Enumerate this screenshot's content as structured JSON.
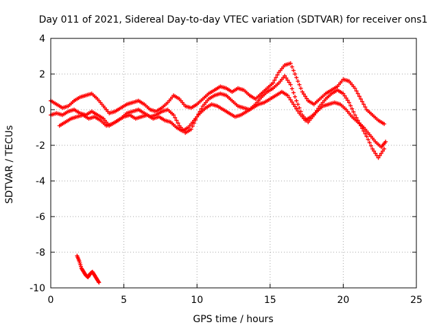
{
  "chart_data": {
    "type": "scatter",
    "title": "Day 011 of 2021, Sidereal Day-to-day VTEC variation (SDTVAR) for receiver ons1",
    "xlabel": "GPS time / hours",
    "ylabel": "SDTVAR / TECUs",
    "xlim": [
      0,
      25
    ],
    "ylim": [
      -10,
      4
    ],
    "xticks": [
      0,
      5,
      10,
      15,
      20,
      25
    ],
    "yticks": [
      -10,
      -8,
      -6,
      -4,
      -2,
      0,
      2,
      4
    ],
    "grid": true,
    "grid_style": "dotted",
    "marker": "+",
    "series_color": "#ff0000",
    "series": [
      {
        "name": "track-upper",
        "points": [
          [
            0,
            0.5
          ],
          [
            0.4,
            0.3
          ],
          [
            0.8,
            0.1
          ],
          [
            1.2,
            0.2
          ],
          [
            1.6,
            0.5
          ],
          [
            2.0,
            0.7
          ],
          [
            2.4,
            0.8
          ],
          [
            2.8,
            0.9
          ],
          [
            3.2,
            0.6
          ],
          [
            3.6,
            0.2
          ],
          [
            4.0,
            -0.2
          ],
          [
            4.4,
            -0.1
          ],
          [
            4.8,
            0.1
          ],
          [
            5.2,
            0.3
          ],
          [
            5.6,
            0.4
          ],
          [
            6.0,
            0.5
          ],
          [
            6.4,
            0.3
          ],
          [
            6.8,
            0.0
          ],
          [
            7.2,
            -0.1
          ],
          [
            7.6,
            0.1
          ],
          [
            8.0,
            0.4
          ],
          [
            8.4,
            0.8
          ],
          [
            8.8,
            0.6
          ],
          [
            9.2,
            0.2
          ],
          [
            9.6,
            0.1
          ],
          [
            10.0,
            0.3
          ],
          [
            10.4,
            0.6
          ],
          [
            10.8,
            0.9
          ],
          [
            11.2,
            1.1
          ],
          [
            11.6,
            1.3
          ],
          [
            12.0,
            1.2
          ],
          [
            12.4,
            1.0
          ],
          [
            12.8,
            1.2
          ],
          [
            13.2,
            1.1
          ],
          [
            13.6,
            0.8
          ],
          [
            14.0,
            0.6
          ],
          [
            14.4,
            0.9
          ],
          [
            14.8,
            1.2
          ],
          [
            15.2,
            1.5
          ],
          [
            15.6,
            2.1
          ],
          [
            16.0,
            2.5
          ],
          [
            16.4,
            2.6
          ],
          [
            16.8,
            1.8
          ],
          [
            17.2,
            1.0
          ],
          [
            17.6,
            0.5
          ],
          [
            18.0,
            0.3
          ],
          [
            18.4,
            0.6
          ],
          [
            18.8,
            0.9
          ],
          [
            19.2,
            1.1
          ],
          [
            19.6,
            1.3
          ],
          [
            20.0,
            1.7
          ],
          [
            20.4,
            1.6
          ],
          [
            20.8,
            1.2
          ],
          [
            21.2,
            0.6
          ],
          [
            21.6,
            0.0
          ],
          [
            22.0,
            -0.3
          ],
          [
            22.4,
            -0.6
          ],
          [
            22.8,
            -0.8
          ]
        ]
      },
      {
        "name": "track-middle",
        "points": [
          [
            0,
            -0.3
          ],
          [
            0.4,
            -0.2
          ],
          [
            0.8,
            -0.3
          ],
          [
            1.2,
            -0.1
          ],
          [
            1.6,
            0.0
          ],
          [
            2.0,
            -0.2
          ],
          [
            2.4,
            -0.3
          ],
          [
            2.8,
            -0.1
          ],
          [
            3.2,
            -0.3
          ],
          [
            3.6,
            -0.5
          ],
          [
            4.0,
            -0.9
          ],
          [
            4.4,
            -0.7
          ],
          [
            4.8,
            -0.5
          ],
          [
            5.2,
            -0.2
          ],
          [
            5.6,
            -0.1
          ],
          [
            6.0,
            0.0
          ],
          [
            6.4,
            -0.2
          ],
          [
            6.8,
            -0.4
          ],
          [
            7.2,
            -0.3
          ],
          [
            7.6,
            -0.1
          ],
          [
            8.0,
            0.0
          ],
          [
            8.4,
            -0.3
          ],
          [
            8.8,
            -0.9
          ],
          [
            9.2,
            -1.3
          ],
          [
            9.6,
            -1.1
          ],
          [
            10.0,
            -0.4
          ],
          [
            10.4,
            0.2
          ],
          [
            10.8,
            0.6
          ],
          [
            11.2,
            0.8
          ],
          [
            11.6,
            0.9
          ],
          [
            12.0,
            0.8
          ],
          [
            12.4,
            0.5
          ],
          [
            12.8,
            0.2
          ],
          [
            13.2,
            0.1
          ],
          [
            13.6,
            0.0
          ],
          [
            14.0,
            0.3
          ],
          [
            14.4,
            0.7
          ],
          [
            14.8,
            1.0
          ],
          [
            15.2,
            1.2
          ],
          [
            15.6,
            1.5
          ],
          [
            16.0,
            1.9
          ],
          [
            16.4,
            1.4
          ],
          [
            16.8,
            0.5
          ],
          [
            17.2,
            -0.3
          ],
          [
            17.6,
            -0.7
          ],
          [
            18.0,
            -0.3
          ],
          [
            18.4,
            0.2
          ],
          [
            18.8,
            0.6
          ],
          [
            19.2,
            0.9
          ],
          [
            19.6,
            1.1
          ],
          [
            20.0,
            0.9
          ],
          [
            20.4,
            0.4
          ],
          [
            20.8,
            -0.3
          ],
          [
            21.2,
            -0.9
          ],
          [
            21.6,
            -1.5
          ],
          [
            22.0,
            -2.2
          ],
          [
            22.4,
            -2.7
          ],
          [
            22.8,
            -2.2
          ]
        ]
      },
      {
        "name": "track-lower",
        "points": [
          [
            0.6,
            -0.9
          ],
          [
            1.0,
            -0.7
          ],
          [
            1.4,
            -0.5
          ],
          [
            1.8,
            -0.4
          ],
          [
            2.2,
            -0.3
          ],
          [
            2.6,
            -0.5
          ],
          [
            3.0,
            -0.4
          ],
          [
            3.4,
            -0.6
          ],
          [
            3.8,
            -0.9
          ],
          [
            4.2,
            -0.8
          ],
          [
            4.6,
            -0.6
          ],
          [
            5.0,
            -0.4
          ],
          [
            5.4,
            -0.3
          ],
          [
            5.8,
            -0.5
          ],
          [
            6.2,
            -0.4
          ],
          [
            6.6,
            -0.3
          ],
          [
            7.0,
            -0.5
          ],
          [
            7.4,
            -0.4
          ],
          [
            7.8,
            -0.6
          ],
          [
            8.2,
            -0.7
          ],
          [
            8.6,
            -1.0
          ],
          [
            9.0,
            -1.2
          ],
          [
            9.4,
            -1.0
          ],
          [
            9.8,
            -0.6
          ],
          [
            10.2,
            -0.2
          ],
          [
            10.6,
            0.1
          ],
          [
            11.0,
            0.3
          ],
          [
            11.4,
            0.2
          ],
          [
            11.8,
            0.0
          ],
          [
            12.2,
            -0.2
          ],
          [
            12.6,
            -0.4
          ],
          [
            13.0,
            -0.3
          ],
          [
            13.4,
            -0.1
          ],
          [
            13.8,
            0.1
          ],
          [
            14.2,
            0.3
          ],
          [
            14.6,
            0.4
          ],
          [
            15.0,
            0.6
          ],
          [
            15.4,
            0.8
          ],
          [
            15.8,
            1.0
          ],
          [
            16.2,
            0.8
          ],
          [
            16.6,
            0.3
          ],
          [
            17.0,
            -0.2
          ],
          [
            17.4,
            -0.6
          ],
          [
            17.8,
            -0.4
          ],
          [
            18.2,
            -0.1
          ],
          [
            18.6,
            0.2
          ],
          [
            19.0,
            0.3
          ],
          [
            19.4,
            0.4
          ],
          [
            19.8,
            0.3
          ],
          [
            20.2,
            0.0
          ],
          [
            20.6,
            -0.4
          ],
          [
            21.0,
            -0.7
          ],
          [
            21.4,
            -1.0
          ],
          [
            21.8,
            -1.4
          ],
          [
            22.2,
            -1.8
          ],
          [
            22.6,
            -2.1
          ],
          [
            22.9,
            -1.8
          ]
        ]
      },
      {
        "name": "track-outlier",
        "points": [
          [
            1.8,
            -8.2
          ],
          [
            1.95,
            -8.5
          ],
          [
            2.1,
            -8.9
          ],
          [
            2.25,
            -9.1
          ],
          [
            2.4,
            -9.3
          ],
          [
            2.55,
            -9.4
          ],
          [
            2.7,
            -9.2
          ],
          [
            2.85,
            -9.1
          ],
          [
            3.0,
            -9.3
          ],
          [
            3.15,
            -9.5
          ],
          [
            3.3,
            -9.7
          ]
        ]
      }
    ]
  }
}
